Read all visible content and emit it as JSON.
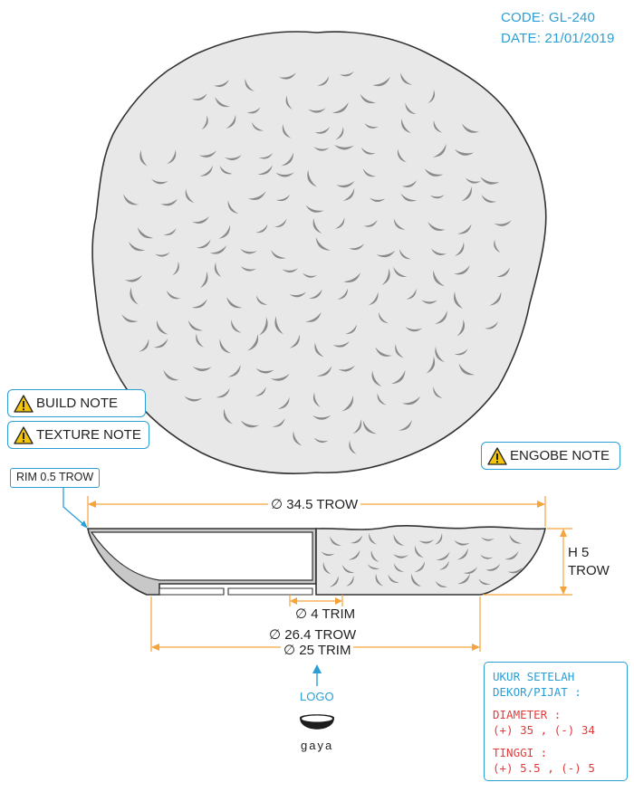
{
  "header": {
    "code": "CODE: GL-240",
    "date": "DATE: 21/01/2019"
  },
  "notes": {
    "build": "BUILD NOTE",
    "texture": "TEXTURE NOTE",
    "engobe": "ENGOBE NOTE"
  },
  "rim_label": "RIM 0.5 TROW",
  "dimensions": {
    "diameter_top": "∅ 34.5 TROW",
    "height_line1": "H 5",
    "height_line2": "TROW",
    "foot_inner": "∅ 4 TRIM",
    "base_trow": "∅ 26.4 TROW",
    "base_trim": "∅ 25 TRIM"
  },
  "logo": {
    "label": "LOGO",
    "brand": "gaya"
  },
  "info": {
    "title_line1": "UKUR SETELAH",
    "title_line2": "DEKOR/PIJAT :",
    "diameter_label": "DIAMETER :",
    "diameter_value": "(+) 35 , (-) 34",
    "height_label": "TINGGI :",
    "height_value": "(+) 5.5 , (-) 5"
  },
  "colors": {
    "dimension": "#f5a33b",
    "accent": "#2a9fd6",
    "warning": "#f2c40c",
    "tolerance": "#e23b3b",
    "plate_fill": "#e8e8e8",
    "section_fill": "#c8c8c8"
  }
}
